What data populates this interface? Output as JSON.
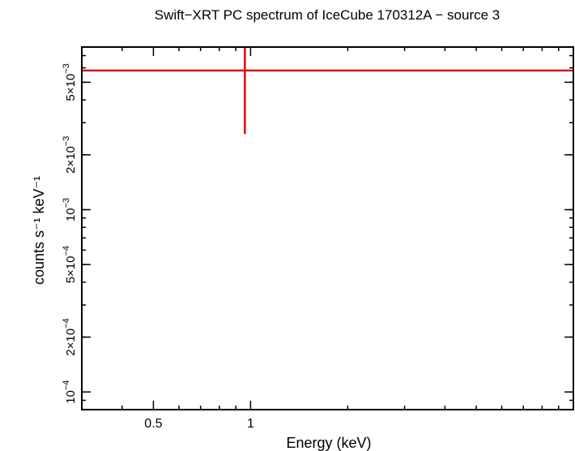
{
  "chart_data": {
    "type": "scatter",
    "title": "Swift−XRT PC spectrum of IceCube 170312A − source 3",
    "xlabel": "Energy (keV)",
    "ylabel": "counts s⁻¹ keV⁻¹",
    "x_scale": "log",
    "y_scale": "log",
    "xlim": [
      0.3,
      10
    ],
    "ylim": [
      8e-05,
      0.0078
    ],
    "x_ticks": [
      {
        "value": 0.5,
        "label": "0.5"
      },
      {
        "value": 1,
        "label": "1"
      }
    ],
    "y_ticks": [
      {
        "value": 0.0001,
        "mantissa": "",
        "exponent": "−4",
        "base": "10"
      },
      {
        "value": 0.0002,
        "mantissa": "2×",
        "exponent": "−4",
        "base": "10"
      },
      {
        "value": 0.0005,
        "mantissa": "5×",
        "exponent": "−4",
        "base": "10"
      },
      {
        "value": 0.001,
        "mantissa": "",
        "exponent": "−3",
        "base": "10"
      },
      {
        "value": 0.002,
        "mantissa": "2×",
        "exponent": "−3",
        "base": "10"
      },
      {
        "value": 0.005,
        "mantissa": "5×",
        "exponent": "−3",
        "base": "10"
      }
    ],
    "series": [
      {
        "name": "source 3",
        "color": "#e00000",
        "points": [
          {
            "x": 0.96,
            "x_low": 0.3,
            "x_high": 10,
            "y": 0.0058,
            "y_low": 0.0026,
            "y_high": 0.0078
          }
        ]
      }
    ]
  }
}
